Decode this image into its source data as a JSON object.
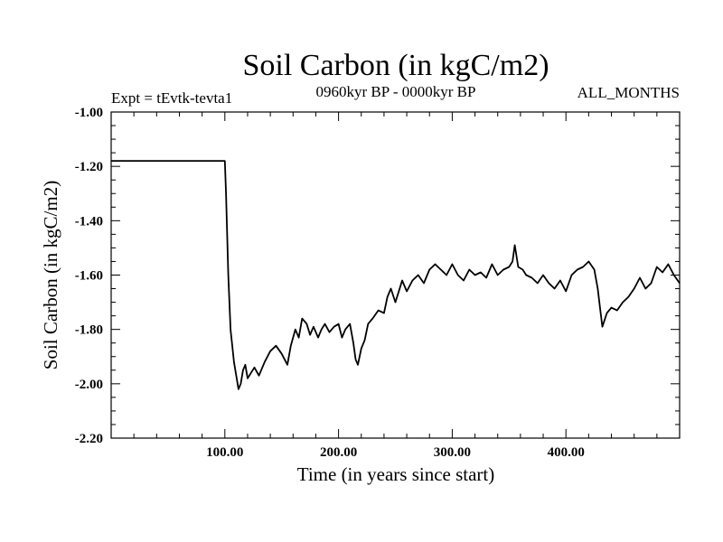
{
  "chart_data": {
    "type": "line",
    "title": "Soil Carbon (in kgC/m2)",
    "left_label": "Expt = tEvtk-tevta1",
    "center_label": "0960kyr BP - 0000kyr BP",
    "right_label": "ALL_MONTHS",
    "xlabel": "Time (in years since start)",
    "ylabel": "Soil Carbon (in kgC/m2)",
    "xlim": [
      0,
      500
    ],
    "ylim": [
      -2.2,
      -1.0
    ],
    "x_ticks": [
      100,
      200,
      300,
      400
    ],
    "x_tick_labels": [
      "100.00",
      "200.00",
      "300.00",
      "400.00"
    ],
    "y_ticks": [
      -1.0,
      -1.2,
      -1.4,
      -1.6,
      -1.8,
      -2.0,
      -2.2
    ],
    "y_tick_labels": [
      "-1.00",
      "-1.20",
      "-1.40",
      "-1.60",
      "-1.80",
      "-2.00",
      "-2.20"
    ],
    "grid": false,
    "series": [
      {
        "name": "Soil Carbon",
        "color": "#000000",
        "x": [
          0,
          100,
          101,
          103,
          105,
          108,
          110,
          112,
          114,
          116,
          118,
          120,
          123,
          126,
          130,
          135,
          140,
          145,
          150,
          155,
          158,
          162,
          165,
          168,
          172,
          175,
          178,
          182,
          185,
          188,
          192,
          196,
          200,
          203,
          206,
          210,
          213,
          215,
          217,
          220,
          223,
          226,
          230,
          235,
          240,
          243,
          246,
          250,
          253,
          256,
          260,
          265,
          270,
          275,
          280,
          285,
          290,
          295,
          300,
          305,
          310,
          315,
          320,
          325,
          330,
          335,
          340,
          345,
          350,
          353,
          355,
          358,
          362,
          365,
          370,
          375,
          380,
          385,
          390,
          395,
          400,
          405,
          410,
          415,
          420,
          425,
          428,
          430,
          432,
          436,
          440,
          445,
          450,
          455,
          460,
          465,
          470,
          475,
          480,
          485,
          490,
          495,
          500
        ],
        "values": [
          -1.18,
          -1.18,
          -1.3,
          -1.6,
          -1.8,
          -1.92,
          -1.97,
          -2.02,
          -2.0,
          -1.95,
          -1.93,
          -1.98,
          -1.96,
          -1.94,
          -1.97,
          -1.92,
          -1.88,
          -1.86,
          -1.89,
          -1.93,
          -1.86,
          -1.8,
          -1.83,
          -1.76,
          -1.78,
          -1.82,
          -1.79,
          -1.83,
          -1.8,
          -1.78,
          -1.81,
          -1.79,
          -1.78,
          -1.83,
          -1.8,
          -1.78,
          -1.85,
          -1.91,
          -1.93,
          -1.87,
          -1.84,
          -1.78,
          -1.76,
          -1.73,
          -1.74,
          -1.68,
          -1.65,
          -1.7,
          -1.66,
          -1.62,
          -1.66,
          -1.62,
          -1.6,
          -1.63,
          -1.58,
          -1.56,
          -1.58,
          -1.6,
          -1.56,
          -1.6,
          -1.62,
          -1.58,
          -1.6,
          -1.59,
          -1.61,
          -1.56,
          -1.6,
          -1.58,
          -1.57,
          -1.55,
          -1.49,
          -1.57,
          -1.58,
          -1.6,
          -1.61,
          -1.63,
          -1.6,
          -1.63,
          -1.65,
          -1.62,
          -1.66,
          -1.6,
          -1.58,
          -1.57,
          -1.55,
          -1.58,
          -1.65,
          -1.72,
          -1.79,
          -1.74,
          -1.72,
          -1.73,
          -1.7,
          -1.68,
          -1.65,
          -1.61,
          -1.65,
          -1.63,
          -1.57,
          -1.59,
          -1.56,
          -1.6,
          -1.63
        ]
      }
    ]
  }
}
